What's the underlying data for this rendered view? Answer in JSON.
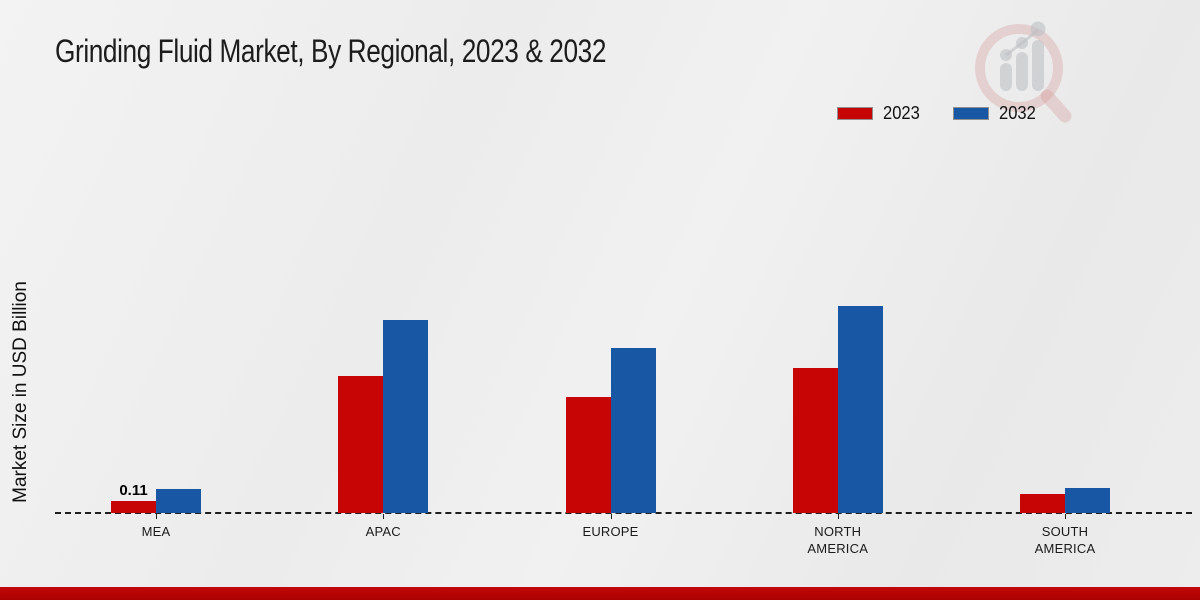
{
  "title": "Grinding Fluid Market, By Regional, 2023 & 2032",
  "ylabel": "Market Size in USD Billion",
  "colors": {
    "series_2023": "#c80505",
    "series_2032": "#1857a4",
    "footer_bar": "#ab0202",
    "axis_line": "#1f1f1f",
    "background": "#ececec"
  },
  "legend": {
    "position": "top-right",
    "items": [
      {
        "label": "2023",
        "color": "#c80505"
      },
      {
        "label": "2032",
        "color": "#1857a4"
      }
    ]
  },
  "watermark_icon": "magnifier-bar-chart-logo",
  "chart_data": {
    "type": "bar",
    "categories": [
      "MEA",
      "APAC",
      "EUROPE",
      "NORTH AMERICA",
      "SOUTH AMERICA"
    ],
    "series": [
      {
        "name": "2023",
        "color": "#c80505",
        "values": [
          0.11,
          1.26,
          1.06,
          1.33,
          0.17
        ],
        "data_labels": [
          "0.11",
          null,
          null,
          null,
          null
        ]
      },
      {
        "name": "2032",
        "color": "#1857a4",
        "values": [
          0.22,
          1.77,
          1.51,
          1.9,
          0.23
        ],
        "data_labels": [
          null,
          null,
          null,
          null,
          null
        ]
      }
    ],
    "title": "Grinding Fluid Market, By Regional, 2023 & 2032",
    "xlabel": "",
    "ylabel": "Market Size in USD Billion",
    "ylim": [
      0,
      2.2
    ],
    "grid": false,
    "y_axis_ticks_visible": false,
    "zero_line_style": "dashed",
    "legend_position": "top-right"
  }
}
